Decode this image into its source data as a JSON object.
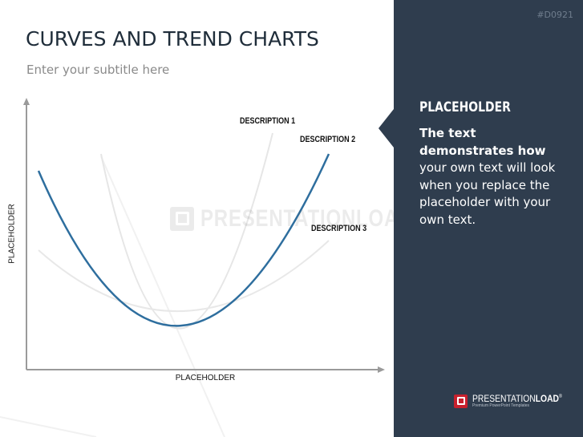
{
  "slide": {
    "code": "#D0921",
    "title": "CURVES AND TREND CHARTS",
    "subtitle": "Enter your subtitle here"
  },
  "diagram": {
    "y_axis_label": "PLACEHOLDER",
    "x_axis_label": "PLACEHOLDER",
    "curve_labels": [
      "DESCRIPTION 1",
      "DESCRIPTION 2",
      "DESCRIPTION 3"
    ],
    "highlight_color": "#2e6e9e",
    "faint_curve_color": "#e8e8e8"
  },
  "panel": {
    "heading": "PLACEHOLDER",
    "text_bold": "The text demonstrates how",
    "text_rest": "your own text will look when you replace the placeholder with your own text.",
    "background": "#2f3d4e"
  },
  "branding": {
    "logo_name_regular": "PRESENTATION",
    "logo_name_bold": "LOAD",
    "logo_mark": "®",
    "logo_tagline": "Premium PowerPoint Templates",
    "watermark": "PRESENTATIONLOAD"
  }
}
